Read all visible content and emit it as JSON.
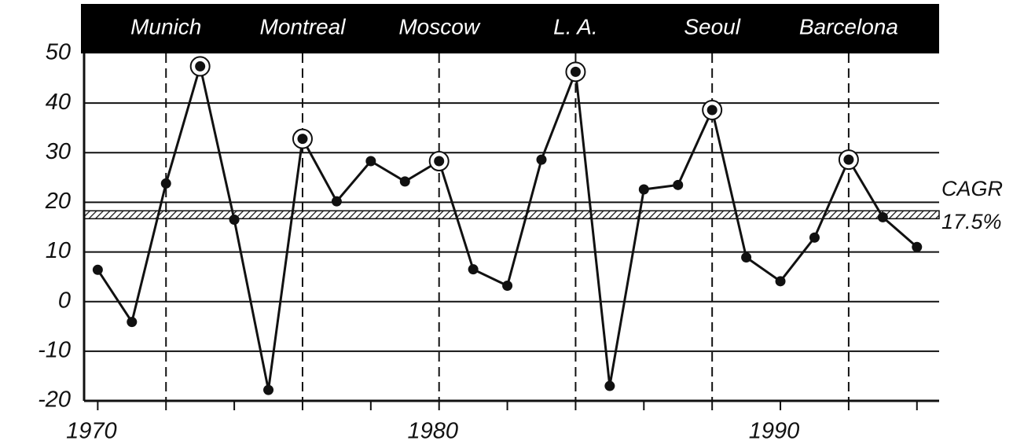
{
  "chart_data": {
    "type": "line",
    "x": [
      1970,
      1971,
      1972,
      1973,
      1974,
      1975,
      1976,
      1977,
      1978,
      1979,
      1980,
      1981,
      1982,
      1983,
      1984,
      1985,
      1986,
      1987,
      1988,
      1989,
      1990,
      1991,
      1992,
      1993,
      1994
    ],
    "series": [
      {
        "color": "#111111",
        "values": [
          6.4,
          -4.1,
          23.8,
          47.4,
          16.5,
          -17.8,
          32.8,
          20.2,
          28.3,
          24.2,
          28.3,
          6.5,
          3.2,
          28.6,
          46.3,
          -17.0,
          22.6,
          23.5,
          38.6,
          8.9,
          4.1,
          12.9,
          28.6,
          17.0,
          11.0
        ]
      }
    ],
    "xlim": [
      1969.6,
      1994.65
    ],
    "xticks": [
      1970,
      1980,
      1990
    ],
    "x_minor_ticks": [
      1972,
      1974,
      1976,
      1978,
      1982,
      1984,
      1986,
      1988,
      1992,
      1994
    ],
    "ylim": [
      -20,
      50
    ],
    "yticks": [
      -20,
      -10,
      0,
      10,
      20,
      30,
      40,
      50
    ],
    "grid": true,
    "events": [
      {
        "label": "Munich",
        "x": 1972
      },
      {
        "label": "Montreal",
        "x": 1976
      },
      {
        "label": "Moscow",
        "x": 1980
      },
      {
        "label": "L. A.",
        "x": 1984
      },
      {
        "label": "Seoul",
        "x": 1988
      },
      {
        "label": "Barcelona",
        "x": 1992
      }
    ],
    "highlight_x": [
      1973,
      1976,
      1980,
      1984,
      1988,
      1992
    ],
    "cagr": {
      "label": "CAGR",
      "value": 17.5,
      "value_label": "17.5%"
    }
  }
}
